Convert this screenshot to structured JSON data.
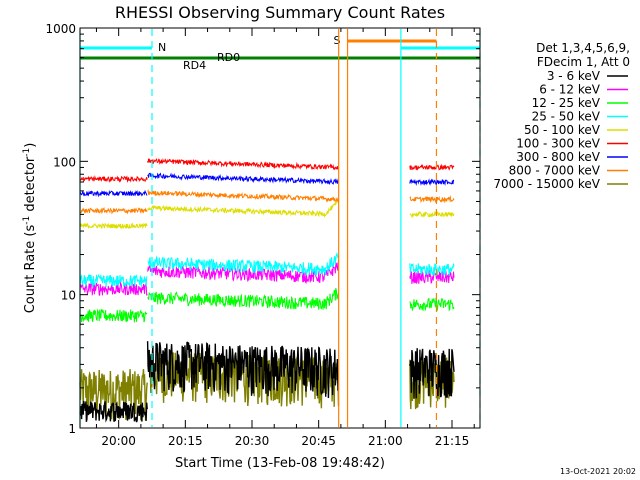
{
  "chart_data": {
    "type": "line",
    "title": "RHESSI Observing Summary Count Rates",
    "xlabel": "Start Time (13-Feb-08 19:48:42)",
    "ylabel_main": "Count Rate (s",
    "ylabel_sup1": "-1",
    "ylabel_mid": " detector",
    "ylabel_sup2": "-1",
    "ylabel_end": ")",
    "yscale": "log",
    "ylim": [
      1,
      1000
    ],
    "y_ticks": [
      {
        "value": 1,
        "label": "1"
      },
      {
        "value": 10,
        "label": "10"
      },
      {
        "value": 100,
        "label": "100"
      },
      {
        "value": 1000,
        "label": "1000"
      }
    ],
    "xlim_min": [
      -8.7,
      81.3
    ],
    "x_ticks": [
      {
        "value": 0,
        "label": "20:00"
      },
      {
        "value": 15,
        "label": "20:15"
      },
      {
        "value": 30,
        "label": "20:30"
      },
      {
        "value": 45,
        "label": "20:45"
      },
      {
        "value": 60,
        "label": "21:00"
      },
      {
        "value": 75,
        "label": "21:15"
      }
    ],
    "legend": {
      "title_line1": "Det 1,3,4,5,6,9,",
      "title_line2": "FDecim 1, Att 0",
      "placement": "right"
    },
    "series": [
      {
        "name": "3 - 6 keV",
        "color": "#000000",
        "base": 3.0
      },
      {
        "name": "6 - 12 keV",
        "color": "#ff00ff",
        "base": 13.5
      },
      {
        "name": "12 - 25 keV",
        "color": "#00ff00",
        "base": 8.5
      },
      {
        "name": "25 - 50 keV",
        "color": "#00ffff",
        "base": 15.5
      },
      {
        "name": "50 - 100 keV",
        "color": "#dddd00",
        "base": 40
      },
      {
        "name": "100 - 300 keV",
        "color": "#ff0000",
        "base": 90
      },
      {
        "name": "300 - 800 keV",
        "color": "#0000ff",
        "base": 70
      },
      {
        "name": "800 - 7000 keV",
        "color": "#ff7f00",
        "base": 52
      },
      {
        "name": "7000 - 15000 keV",
        "color": "#808000",
        "base": 2.5
      }
    ],
    "segments_min": [
      {
        "from": -8.7,
        "to": 6.5,
        "note": "pre"
      },
      {
        "from": 6.5,
        "to": 49.5,
        "note": "main"
      },
      {
        "from": 65.5,
        "to": 75.5,
        "note": "post"
      }
    ],
    "flags": [
      {
        "label": "N",
        "color": "#00ffff"
      },
      {
        "label": "S",
        "color": "#ff7f00"
      },
      {
        "label": "RD0",
        "color": "#008000"
      },
      {
        "label": "RD4",
        "color": "#008000"
      }
    ],
    "flag_ranges_min": {
      "N": [
        [
          -8.7,
          7.5
        ],
        [
          63.5,
          81.3
        ]
      ],
      "S": [
        [
          51.5,
          71.5
        ]
      ]
    },
    "vlines_min": [
      {
        "x": 7.5,
        "color": "#00ffff",
        "dash": true
      },
      {
        "x": 49.5,
        "color": "#ff7f00",
        "dash": false
      },
      {
        "x": 51.5,
        "color": "#ff7f00",
        "dash": false
      },
      {
        "x": 63.5,
        "color": "#00ffff",
        "dash": false
      },
      {
        "x": 71.5,
        "color": "#ff7f00",
        "dash": true
      },
      {
        "x": 81.3,
        "color": "#00ffff",
        "dash": true
      },
      {
        "x": -8.7,
        "color": "#00ffff",
        "dash": false
      }
    ],
    "timestamp": "13-Oct-2021 20:02"
  }
}
